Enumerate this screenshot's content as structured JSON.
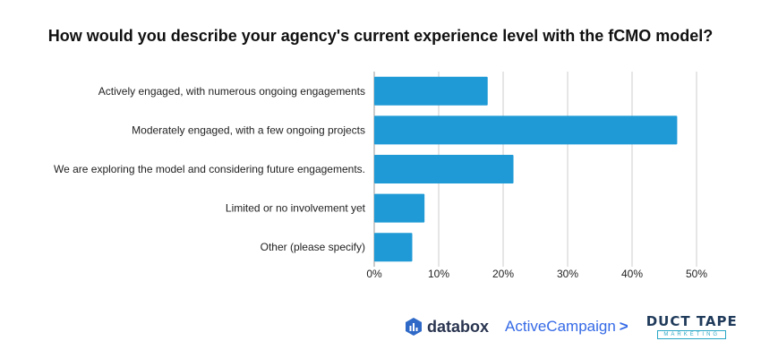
{
  "title": "How would you describe your agency's current experience level with the fCMO model?",
  "chart_data": {
    "type": "bar",
    "orientation": "horizontal",
    "categories": [
      "Actively engaged, with numerous ongoing engagements",
      "Moderately engaged, with a few ongoing projects",
      "We are exploring the model and considering future engagements.",
      "Limited or no involvement yet",
      "Other (please specify)"
    ],
    "values": [
      17.6,
      47.0,
      21.6,
      7.8,
      5.9
    ],
    "xlim": [
      0,
      50
    ],
    "xticks": [
      0,
      10,
      20,
      30,
      40,
      50
    ],
    "tick_labels": [
      "0%",
      "10%",
      "20%",
      "30%",
      "40%",
      "50%"
    ],
    "xlabel": "",
    "ylabel": "",
    "grid": true,
    "bar_color": "#1f9ad6",
    "grid_color": "#cccccc"
  },
  "logos": {
    "databox": "databox",
    "activecampaign": "ActiveCampaign",
    "activecampaign_chevron": ">",
    "ducttape": "DUCT TAPE",
    "ducttape_sub": "MARKETING"
  }
}
